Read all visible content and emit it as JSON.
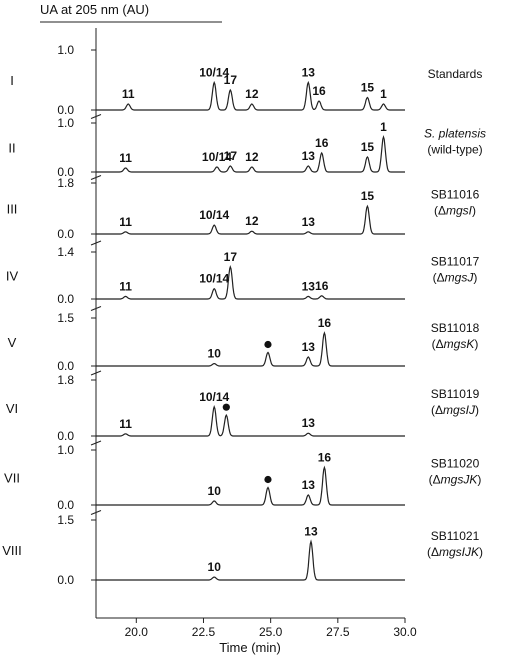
{
  "chart_data": {
    "type": "line",
    "y_axis_title": "UA at 205 nm (AU)",
    "x_axis_title": "Time (min)",
    "xlim": [
      18.5,
      30
    ],
    "x_ticks": [
      {
        "value": 20,
        "label": "20.0"
      },
      {
        "value": 22.5,
        "label": "22.5"
      },
      {
        "value": 25,
        "label": "25.0"
      },
      {
        "value": 27.5,
        "label": "27.5"
      },
      {
        "value": 30,
        "label": "30.0"
      }
    ],
    "panels": [
      {
        "roman": "I",
        "ytop_label": "1.0",
        "ybottom_label": "0.0",
        "ymax": 1.0,
        "name": "Standards",
        "genotype_prefix": "",
        "genotype_gene": "",
        "genotype_suffix": "",
        "peaks": [
          {
            "label": "11",
            "x": 19.7,
            "y": 0.12
          },
          {
            "label": "10/14",
            "x": 22.9,
            "y": 0.55
          },
          {
            "label": "17",
            "x": 23.5,
            "y": 0.4
          },
          {
            "label": "12",
            "x": 24.3,
            "y": 0.12
          },
          {
            "label": "13",
            "x": 26.4,
            "y": 0.55
          },
          {
            "label": "16",
            "x": 26.8,
            "y": 0.18
          },
          {
            "label": "15",
            "x": 28.6,
            "y": 0.25
          },
          {
            "label": "1",
            "x": 29.2,
            "y": 0.12
          }
        ],
        "markers": []
      },
      {
        "roman": "II",
        "ytop_label": "1.0",
        "ybottom_label": "0.0",
        "ymax": 1.0,
        "name": "S. platensis",
        "genotype_prefix": "(",
        "genotype_gene": "wild-type",
        "genotype_suffix": ")",
        "peaks": [
          {
            "label": "11",
            "x": 19.6,
            "y": 0.08
          },
          {
            "label": "10/14",
            "x": 23.0,
            "y": 0.1
          },
          {
            "label": "17",
            "x": 23.5,
            "y": 0.12
          },
          {
            "label": "12",
            "x": 24.3,
            "y": 0.1
          },
          {
            "label": "13",
            "x": 26.4,
            "y": 0.12
          },
          {
            "label": "16",
            "x": 26.9,
            "y": 0.38
          },
          {
            "label": "15",
            "x": 28.6,
            "y": 0.3
          },
          {
            "label": "1",
            "x": 29.2,
            "y": 0.7
          }
        ],
        "markers": []
      },
      {
        "roman": "III",
        "ytop_label": "1.8",
        "ybottom_label": "0.0",
        "ymax": 1.8,
        "name": "SB11016",
        "genotype_prefix": "(Δ",
        "genotype_gene": "mgsI",
        "genotype_suffix": ")",
        "peaks": [
          {
            "label": "11",
            "x": 19.6,
            "y": 0.08
          },
          {
            "label": "10/14",
            "x": 22.9,
            "y": 0.32
          },
          {
            "label": "12",
            "x": 24.3,
            "y": 0.1
          },
          {
            "label": "13",
            "x": 26.4,
            "y": 0.08
          },
          {
            "label": "15",
            "x": 28.6,
            "y": 1.0
          }
        ],
        "markers": []
      },
      {
        "roman": "IV",
        "ytop_label": "1.4",
        "ybottom_label": "0.0",
        "ymax": 1.4,
        "name": "SB11017",
        "genotype_prefix": "(Δ",
        "genotype_gene": "mgsJ",
        "genotype_suffix": ")",
        "peaks": [
          {
            "label": "11",
            "x": 19.6,
            "y": 0.08
          },
          {
            "label": "10/14",
            "x": 22.9,
            "y": 0.32
          },
          {
            "label": "17",
            "x": 23.5,
            "y": 1.0
          },
          {
            "label": "13",
            "x": 26.4,
            "y": 0.08
          },
          {
            "label": "16",
            "x": 26.9,
            "y": 0.1
          }
        ],
        "markers": []
      },
      {
        "roman": "V",
        "ytop_label": "1.5",
        "ybottom_label": "0.0",
        "ymax": 1.5,
        "name": "SB11018",
        "genotype_prefix": "(Δ",
        "genotype_gene": "mgsK",
        "genotype_suffix": ")",
        "peaks": [
          {
            "label": "10",
            "x": 22.9,
            "y": 0.08
          },
          {
            "label": "13",
            "x": 26.4,
            "y": 0.3
          },
          {
            "label": "16",
            "x": 27.0,
            "y": 1.1
          }
        ],
        "markers": [
          {
            "x": 24.9,
            "y": 0.45
          }
        ]
      },
      {
        "roman": "VI",
        "ytop_label": "1.8",
        "ybottom_label": "0.0",
        "ymax": 1.8,
        "name": "SB11019",
        "genotype_prefix": "(Δ",
        "genotype_gene": "mgsIJ",
        "genotype_suffix": ")",
        "peaks": [
          {
            "label": "11",
            "x": 19.6,
            "y": 0.08
          },
          {
            "label": "10/14",
            "x": 22.9,
            "y": 1.05
          },
          {
            "label": "13",
            "x": 26.4,
            "y": 0.1
          }
        ],
        "markers": [
          {
            "x": 23.35,
            "y": 0.75
          }
        ]
      },
      {
        "roman": "VII",
        "ytop_label": "1.0",
        "ybottom_label": "0.0",
        "ymax": 1.0,
        "name": "SB11020",
        "genotype_prefix": "(Δ",
        "genotype_gene": "mgsJK",
        "genotype_suffix": ")",
        "peaks": [
          {
            "label": "10",
            "x": 22.9,
            "y": 0.08
          },
          {
            "label": "13",
            "x": 26.4,
            "y": 0.2
          },
          {
            "label": "16",
            "x": 27.0,
            "y": 0.75
          }
        ],
        "markers": [
          {
            "x": 24.9,
            "y": 0.35
          }
        ]
      },
      {
        "roman": "VIII",
        "ytop_label": "1.5",
        "ybottom_label": "0.0",
        "ymax": 1.5,
        "name": "SB11021",
        "genotype_prefix": "(Δ",
        "genotype_gene": "mgsIJK",
        "genotype_suffix": ")",
        "peaks": [
          {
            "label": "10",
            "x": 22.9,
            "y": 0.08
          },
          {
            "label": "13",
            "x": 26.5,
            "y": 1.05
          }
        ],
        "markers": []
      }
    ]
  }
}
